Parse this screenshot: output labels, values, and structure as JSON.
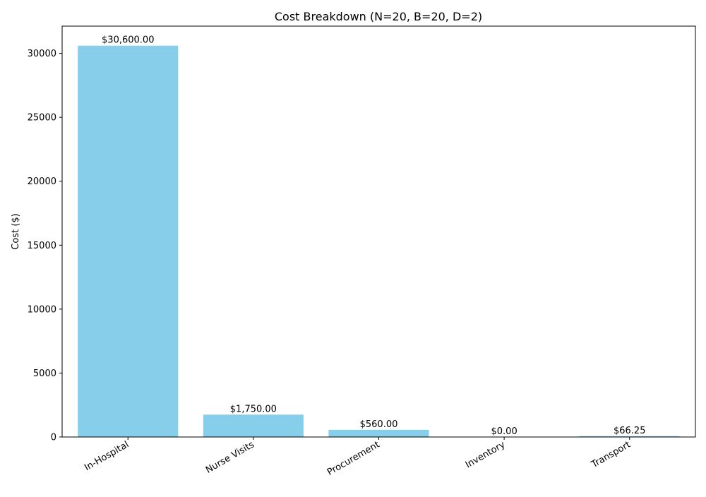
{
  "chart_data": {
    "type": "bar",
    "title": "Cost Breakdown (N=20, B=20, D=2)",
    "xlabel": "",
    "ylabel": "Cost ($)",
    "categories": [
      "In-Hospital",
      "Nurse Visits",
      "Procurement",
      "Inventory",
      "Transport"
    ],
    "values": [
      30600,
      1750,
      560,
      0,
      66.25
    ],
    "value_labels": [
      "$30,600.00",
      "$1,750.00",
      "$560.00",
      "$0.00",
      "$66.25"
    ],
    "ylim": [
      0,
      32130
    ],
    "yticks": [
      0,
      5000,
      10000,
      15000,
      20000,
      25000,
      30000
    ],
    "ytick_labels": [
      "0",
      "5000",
      "10000",
      "15000",
      "20000",
      "25000",
      "30000"
    ],
    "grid": false,
    "legend": "none",
    "bar_color": "#87CEEB"
  }
}
